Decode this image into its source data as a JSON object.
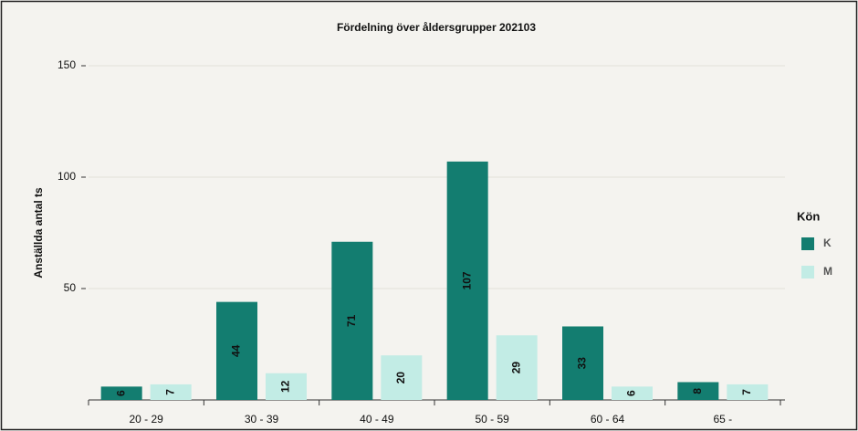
{
  "chart_data": {
    "type": "bar",
    "title": "Fördelning över åldersgrupper 202103",
    "y_label": "Anställda antal ts",
    "categories": [
      "20 - 29",
      "30 - 39",
      "40 - 49",
      "50 - 59",
      "60 - 64",
      "65 -"
    ],
    "series": [
      {
        "name": "K",
        "color": "#137d70",
        "values": [
          6,
          44,
          71,
          107,
          33,
          8
        ]
      },
      {
        "name": "M",
        "color": "#c2ece5",
        "values": [
          7,
          12,
          20,
          29,
          6,
          7
        ]
      }
    ],
    "ylim": [
      0,
      150
    ],
    "yticks": [
      50,
      100,
      150
    ],
    "grid": true,
    "legend_title": "Kön",
    "legend_position": "right"
  }
}
